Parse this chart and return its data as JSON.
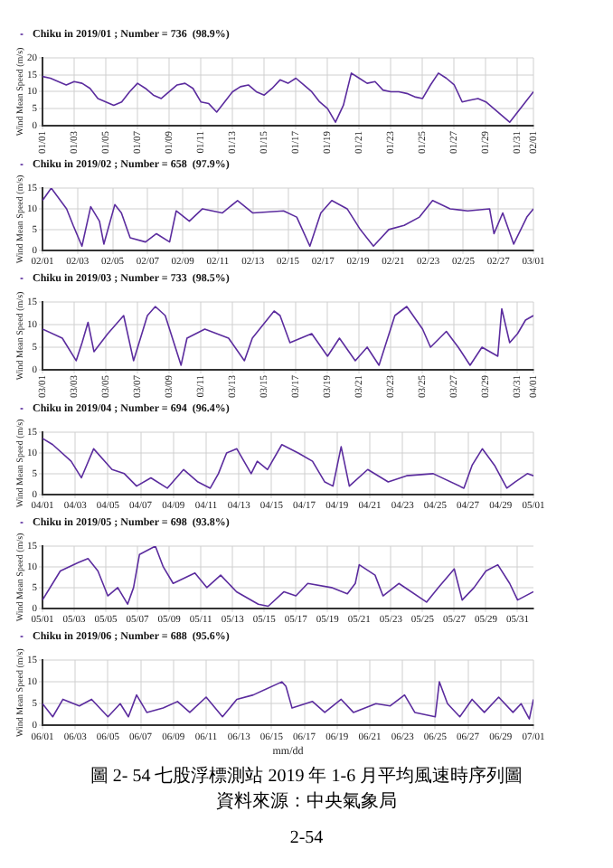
{
  "chart_data": [
    {
      "type": "line",
      "ylabel": "Wind Mean Speed (m/s)",
      "xlim": [
        "2019-01-01T00:00",
        "2019-02-01T00:00"
      ],
      "xticks": [
        {
          "value": "2019-01-01T00:00",
          "label": "01/01"
        },
        {
          "value": "2019-01-03T00:00",
          "label": "01/03"
        },
        {
          "value": "2019-01-05T00:00",
          "label": "01/05"
        },
        {
          "value": "2019-01-07T00:00",
          "label": "01/07"
        },
        {
          "value": "2019-01-09T00:00",
          "label": "01/09"
        },
        {
          "value": "2019-01-11T00:00",
          "label": "01/11"
        },
        {
          "value": "2019-01-13T00:00",
          "label": "01/13"
        },
        {
          "value": "2019-01-15T00:00",
          "label": "01/15"
        },
        {
          "value": "2019-01-17T00:00",
          "label": "01/17"
        },
        {
          "value": "2019-01-19T00:00",
          "label": "01/19"
        },
        {
          "value": "2019-01-21T00:00",
          "label": "01/21"
        },
        {
          "value": "2019-01-23T00:00",
          "label": "01/23"
        },
        {
          "value": "2019-01-25T00:00",
          "label": "01/25"
        },
        {
          "value": "2019-01-27T00:00",
          "label": "01/27"
        },
        {
          "value": "2019-01-29T00:00",
          "label": "01/29"
        },
        {
          "value": "2019-01-31T00:00",
          "label": "01/31"
        },
        {
          "value": "2019-02-01T00:00",
          "label": "02/01"
        }
      ],
      "ylim": [
        0,
        20
      ],
      "yticks": [
        0,
        5,
        10,
        15,
        20
      ],
      "grid": true,
      "legend": "top left",
      "x": [
        "2019-01-01T00:00",
        "2019-01-01T12:00",
        "2019-01-02T00:00",
        "2019-01-02T12:00",
        "2019-01-03T00:00",
        "2019-01-03T12:00",
        "2019-01-04T00:00",
        "2019-01-04T12:00",
        "2019-01-05T00:00",
        "2019-01-05T12:00",
        "2019-01-06T00:00",
        "2019-01-06T12:00",
        "2019-01-07T00:00",
        "2019-01-07T12:00",
        "2019-01-08T00:00",
        "2019-01-08T12:00",
        "2019-01-09T00:00",
        "2019-01-09T12:00",
        "2019-01-10T00:00",
        "2019-01-10T12:00",
        "2019-01-11T00:00",
        "2019-01-11T12:00",
        "2019-01-12T00:00",
        "2019-01-12T12:00",
        "2019-01-13T00:00",
        "2019-01-13T12:00",
        "2019-01-14T00:00",
        "2019-01-14T12:00",
        "2019-01-15T00:00",
        "2019-01-15T12:00",
        "2019-01-16T00:00",
        "2019-01-16T12:00",
        "2019-01-17T00:00",
        "2019-01-17T12:00",
        "2019-01-18T00:00",
        "2019-01-18T12:00",
        "2019-01-19T00:00",
        "2019-01-19T12:00",
        "2019-01-20T00:00",
        "2019-01-20T12:00",
        "2019-01-21T00:00",
        "2019-01-21T12:00",
        "2019-01-22T00:00",
        "2019-01-22T12:00",
        "2019-01-23T00:00",
        "2019-01-23T12:00",
        "2019-01-24T00:00",
        "2019-01-24T12:00",
        "2019-01-25T00:00",
        "2019-01-25T12:00",
        "2019-01-26T00:00",
        "2019-01-26T12:00",
        "2019-01-27T00:00",
        "2019-01-27T12:00",
        "2019-01-28T00:00",
        "2019-01-28T12:00",
        "2019-01-29T00:00",
        "2019-01-29T12:00",
        "2019-01-30T00:00",
        "2019-01-30T12:00",
        "2019-01-31T00:00",
        "2019-01-31T12:00",
        "2019-02-01T00:00"
      ],
      "series": [
        {
          "name": "Chiku in 2019/01 ; Number = 736  (98.9%)",
          "color": "#5b2c9e",
          "values": [
            14.5,
            14,
            13,
            12,
            13,
            12.5,
            11,
            8,
            7,
            6,
            7,
            10,
            12.5,
            11,
            9,
            8,
            10,
            12,
            12.5,
            11,
            7,
            6.5,
            4,
            7,
            10,
            11.5,
            12,
            10,
            9,
            11,
            13.5,
            12.5,
            14,
            12,
            10,
            7,
            5,
            1,
            6,
            15.5,
            14,
            12.5,
            13,
            10.5,
            10,
            10,
            9.5,
            8.5,
            8,
            12,
            15.5,
            14,
            12,
            7,
            7.5,
            8,
            7,
            5,
            3,
            1,
            4,
            7,
            10
          ]
        }
      ]
    },
    {
      "type": "line",
      "ylabel": "Wind Mean Speed (m/s)",
      "xlim": [
        "2019-02-01T00:00",
        "2019-03-01T00:00"
      ],
      "xticks": [
        {
          "value": "2019-02-01T00:00",
          "label": "02/01"
        },
        {
          "value": "2019-02-03T00:00",
          "label": "02/03"
        },
        {
          "value": "2019-02-05T00:00",
          "label": "02/05"
        },
        {
          "value": "2019-02-07T00:00",
          "label": "02/07"
        },
        {
          "value": "2019-02-09T00:00",
          "label": "02/09"
        },
        {
          "value": "2019-02-11T00:00",
          "label": "02/11"
        },
        {
          "value": "2019-02-13T00:00",
          "label": "02/13"
        },
        {
          "value": "2019-02-15T00:00",
          "label": "02/15"
        },
        {
          "value": "2019-02-17T00:00",
          "label": "02/17"
        },
        {
          "value": "2019-02-19T00:00",
          "label": "02/19"
        },
        {
          "value": "2019-02-21T00:00",
          "label": "02/21"
        },
        {
          "value": "2019-02-23T00:00",
          "label": "02/23"
        },
        {
          "value": "2019-02-25T00:00",
          "label": "02/25"
        },
        {
          "value": "2019-02-27T00:00",
          "label": "02/27"
        },
        {
          "value": "2019-03-01T00:00",
          "label": "03/01"
        }
      ],
      "ylim": [
        0,
        15
      ],
      "yticks": [
        0,
        5,
        10,
        15
      ],
      "grid": true,
      "legend": "top left",
      "x": [
        "2019-02-01T00:00",
        "2019-02-01T12:00",
        "2019-02-02T09:00",
        "2019-02-02T18:00",
        "2019-02-03T06:00",
        "2019-02-03T18:00",
        "2019-02-04T06:00",
        "2019-02-04T12:00",
        "2019-02-05T03:00",
        "2019-02-05T12:00",
        "2019-02-06T00:00",
        "2019-02-06T21:00",
        "2019-02-07T12:00",
        "2019-02-08T06:00",
        "2019-02-08T15:00",
        "2019-02-09T09:00",
        "2019-02-10T03:00",
        "2019-02-11T06:00",
        "2019-02-12T03:00",
        "2019-02-13T00:00",
        "2019-02-14T18:00",
        "2019-02-15T12:00",
        "2019-02-16T06:00",
        "2019-02-16T21:00",
        "2019-02-17T12:00",
        "2019-02-18T09:00",
        "2019-02-19T03:00",
        "2019-02-19T21:00",
        "2019-02-20T18:00",
        "2019-02-21T15:00",
        "2019-02-22T12:00",
        "2019-02-23T06:00",
        "2019-02-24T06:00",
        "2019-02-25T06:00",
        "2019-02-26T12:00",
        "2019-02-26T18:00",
        "2019-02-27T06:00",
        "2019-02-27T21:00",
        "2019-02-28T15:00",
        "2019-03-01T00:00"
      ],
      "series": [
        {
          "name": "Chiku in 2019/02 ; Number = 658  (97.9%)",
          "color": "#5b2c9e",
          "values": [
            12,
            15,
            10,
            6,
            1,
            10.5,
            7,
            1.5,
            11,
            9,
            3,
            2,
            4,
            2,
            9.5,
            7,
            10,
            9,
            12,
            9,
            9.5,
            8,
            1,
            9,
            12,
            10,
            5,
            1,
            5,
            6,
            8,
            12,
            10,
            9.5,
            10,
            4,
            9,
            1.5,
            8,
            10
          ]
        }
      ]
    },
    {
      "type": "line",
      "ylabel": "Wind Mean Speed (m/s)",
      "xlim": [
        "2019-03-01T00:00",
        "2019-04-01T00:00"
      ],
      "xticks": [
        {
          "value": "2019-03-01T00:00",
          "label": "03/01"
        },
        {
          "value": "2019-03-03T00:00",
          "label": "03/03"
        },
        {
          "value": "2019-03-05T00:00",
          "label": "03/05"
        },
        {
          "value": "2019-03-07T00:00",
          "label": "03/07"
        },
        {
          "value": "2019-03-09T00:00",
          "label": "03/09"
        },
        {
          "value": "2019-03-11T00:00",
          "label": "03/11"
        },
        {
          "value": "2019-03-13T00:00",
          "label": "03/13"
        },
        {
          "value": "2019-03-15T00:00",
          "label": "03/15"
        },
        {
          "value": "2019-03-17T00:00",
          "label": "03/17"
        },
        {
          "value": "2019-03-19T00:00",
          "label": "03/19"
        },
        {
          "value": "2019-03-21T00:00",
          "label": "03/21"
        },
        {
          "value": "2019-03-23T00:00",
          "label": "03/23"
        },
        {
          "value": "2019-03-25T00:00",
          "label": "03/25"
        },
        {
          "value": "2019-03-27T00:00",
          "label": "03/27"
        },
        {
          "value": "2019-03-29T00:00",
          "label": "03/29"
        },
        {
          "value": "2019-03-31T00:00",
          "label": "03/31"
        },
        {
          "value": "2019-04-01T00:00",
          "label": "04/01"
        }
      ],
      "ylim": [
        0,
        15
      ],
      "yticks": [
        0,
        5,
        10,
        15
      ],
      "grid": true,
      "legend": "top left",
      "x": [
        "2019-03-01T00:00",
        "2019-03-02T06:00",
        "2019-03-03T03:00",
        "2019-03-03T12:00",
        "2019-03-03T21:00",
        "2019-03-04T06:00",
        "2019-03-05T03:00",
        "2019-03-06T03:00",
        "2019-03-06T18:00",
        "2019-03-07T15:00",
        "2019-03-08T03:00",
        "2019-03-08T18:00",
        "2019-03-09T18:00",
        "2019-03-10T03:00",
        "2019-03-11T06:00",
        "2019-03-12T18:00",
        "2019-03-13T18:00",
        "2019-03-14T06:00",
        "2019-03-15T15:00",
        "2019-03-16T00:00",
        "2019-03-16T15:00",
        "2019-03-18T00:00",
        "2019-03-19T00:00",
        "2019-03-19T18:00",
        "2019-03-20T18:00",
        "2019-03-21T12:00",
        "2019-03-22T06:00",
        "2019-03-23T06:00",
        "2019-03-24T00:00",
        "2019-03-25T00:00",
        "2019-03-25T12:00",
        "2019-03-26T12:00",
        "2019-03-27T06:00",
        "2019-03-28T00:00",
        "2019-03-28T18:00",
        "2019-03-29T18:00",
        "2019-03-30T00:00",
        "2019-03-30T12:00",
        "2019-03-31T00:00",
        "2019-03-31T12:00",
        "2019-04-01T00:00"
      ],
      "series": [
        {
          "name": "Chiku in 2019/03 ; Number = 733  (98.5%)",
          "color": "#5b2c9e",
          "values": [
            9,
            7,
            2,
            6,
            10.5,
            4,
            8,
            12,
            2,
            12,
            14,
            12,
            1,
            7,
            9,
            7,
            2,
            7,
            13,
            12,
            6,
            8,
            3,
            7,
            2,
            5,
            1,
            12,
            14,
            9,
            5,
            8.5,
            5,
            1,
            5,
            3,
            13.5,
            6,
            8,
            11,
            12
          ]
        }
      ]
    },
    {
      "type": "line",
      "ylabel": "Wind Mean Speed (m/s)",
      "xlim": [
        "2019-04-01T00:00",
        "2019-05-01T00:00"
      ],
      "xticks": [
        {
          "value": "2019-04-01T00:00",
          "label": "04/01"
        },
        {
          "value": "2019-04-03T00:00",
          "label": "04/03"
        },
        {
          "value": "2019-04-05T00:00",
          "label": "04/05"
        },
        {
          "value": "2019-04-07T00:00",
          "label": "04/07"
        },
        {
          "value": "2019-04-09T00:00",
          "label": "04/09"
        },
        {
          "value": "2019-04-11T00:00",
          "label": "04/11"
        },
        {
          "value": "2019-04-13T00:00",
          "label": "04/13"
        },
        {
          "value": "2019-04-15T00:00",
          "label": "04/15"
        },
        {
          "value": "2019-04-17T00:00",
          "label": "04/17"
        },
        {
          "value": "2019-04-19T00:00",
          "label": "04/19"
        },
        {
          "value": "2019-04-21T00:00",
          "label": "04/21"
        },
        {
          "value": "2019-04-23T00:00",
          "label": "04/23"
        },
        {
          "value": "2019-04-25T00:00",
          "label": "04/25"
        },
        {
          "value": "2019-04-27T00:00",
          "label": "04/27"
        },
        {
          "value": "2019-04-29T00:00",
          "label": "04/29"
        },
        {
          "value": "2019-05-01T00:00",
          "label": "05/01"
        }
      ],
      "ylim": [
        0,
        15
      ],
      "yticks": [
        0,
        5,
        10,
        15
      ],
      "grid": true,
      "legend": "top left",
      "x": [
        "2019-04-01T00:00",
        "2019-04-01T15:00",
        "2019-04-02T18:00",
        "2019-04-03T09:00",
        "2019-04-04T03:00",
        "2019-04-05T06:00",
        "2019-04-06T00:00",
        "2019-04-06T18:00",
        "2019-04-07T15:00",
        "2019-04-08T15:00",
        "2019-04-09T15:00",
        "2019-04-10T12:00",
        "2019-04-11T06:00",
        "2019-04-11T18:00",
        "2019-04-12T06:00",
        "2019-04-12T21:00",
        "2019-04-13T18:00",
        "2019-04-14T03:00",
        "2019-04-14T18:00",
        "2019-04-15T15:00",
        "2019-04-16T15:00",
        "2019-04-17T12:00",
        "2019-04-18T06:00",
        "2019-04-18T18:00",
        "2019-04-19T06:00",
        "2019-04-19T18:00",
        "2019-04-20T21:00",
        "2019-04-22T03:00",
        "2019-04-23T06:00",
        "2019-04-24T21:00",
        "2019-04-26T18:00",
        "2019-04-27T06:00",
        "2019-04-27T21:00",
        "2019-04-28T15:00",
        "2019-04-29T09:00",
        "2019-04-29T21:00",
        "2019-04-30T15:00",
        "2019-05-01T00:00"
      ],
      "series": [
        {
          "name": "Chiku in 2019/04 ; Number = 694  (96.4%)",
          "color": "#5b2c9e",
          "values": [
            13.5,
            12,
            8,
            4,
            11,
            6,
            5,
            2,
            4,
            1.5,
            6,
            3,
            1.5,
            5,
            10,
            11,
            5,
            8,
            6,
            12,
            10,
            8,
            3,
            2,
            11.5,
            2,
            6,
            3,
            4.5,
            5,
            1.5,
            7,
            11,
            7,
            1.5,
            3,
            5,
            4.5
          ]
        }
      ]
    },
    {
      "type": "line",
      "ylabel": "Wind Mean Speed (m/s)",
      "xlim": [
        "2019-05-01T00:00",
        "2019-06-01T00:00"
      ],
      "xticks": [
        {
          "value": "2019-05-01T00:00",
          "label": "05/01"
        },
        {
          "value": "2019-05-03T00:00",
          "label": "05/03"
        },
        {
          "value": "2019-05-05T00:00",
          "label": "05/05"
        },
        {
          "value": "2019-05-07T00:00",
          "label": "05/07"
        },
        {
          "value": "2019-05-09T00:00",
          "label": "05/09"
        },
        {
          "value": "2019-05-11T00:00",
          "label": "05/11"
        },
        {
          "value": "2019-05-13T00:00",
          "label": "05/13"
        },
        {
          "value": "2019-05-15T00:00",
          "label": "05/15"
        },
        {
          "value": "2019-05-17T00:00",
          "label": "05/17"
        },
        {
          "value": "2019-05-19T00:00",
          "label": "05/19"
        },
        {
          "value": "2019-05-21T00:00",
          "label": "05/21"
        },
        {
          "value": "2019-05-23T00:00",
          "label": "05/23"
        },
        {
          "value": "2019-05-25T00:00",
          "label": "05/25"
        },
        {
          "value": "2019-05-27T00:00",
          "label": "05/27"
        },
        {
          "value": "2019-05-29T00:00",
          "label": "05/29"
        },
        {
          "value": "2019-05-31T00:00",
          "label": "05/31"
        }
      ],
      "ylim": [
        0,
        15
      ],
      "yticks": [
        0,
        5,
        10,
        15
      ],
      "grid": true,
      "legend": "top left",
      "x": [
        "2019-05-01T00:00",
        "2019-05-02T03:00",
        "2019-05-03T06:00",
        "2019-05-03T21:00",
        "2019-05-04T12:00",
        "2019-05-05T03:00",
        "2019-05-05T18:00",
        "2019-05-06T09:00",
        "2019-05-06T18:00",
        "2019-05-07T03:00",
        "2019-05-08T03:00",
        "2019-05-08T15:00",
        "2019-05-09T06:00",
        "2019-05-10T15:00",
        "2019-05-11T09:00",
        "2019-05-12T06:00",
        "2019-05-13T06:00",
        "2019-05-14T15:00",
        "2019-05-15T06:00",
        "2019-05-16T06:00",
        "2019-05-17T00:00",
        "2019-05-17T18:00",
        "2019-05-19T06:00",
        "2019-05-20T06:00",
        "2019-05-20T18:00",
        "2019-05-21T00:00",
        "2019-05-22T00:00",
        "2019-05-22T12:00",
        "2019-05-23T12:00",
        "2019-05-25T06:00",
        "2019-05-26T00:00",
        "2019-05-27T00:00",
        "2019-05-27T12:00",
        "2019-05-28T06:00",
        "2019-05-29T00:00",
        "2019-05-29T18:00",
        "2019-05-30T12:00",
        "2019-05-31T00:00",
        "2019-06-01T00:00"
      ],
      "series": [
        {
          "name": "Chiku in 2019/05 ; Number = 698  (93.8%)",
          "color": "#5b2c9e",
          "values": [
            2,
            9,
            11,
            12,
            9,
            3,
            5,
            1,
            5,
            13,
            15,
            10,
            6,
            8.5,
            5,
            8,
            4,
            1,
            0.5,
            4,
            3,
            6,
            5,
            3.5,
            6,
            10.5,
            8,
            3,
            6,
            1.5,
            5,
            9.5,
            2,
            5,
            9,
            10.5,
            6,
            2,
            4
          ]
        }
      ]
    },
    {
      "type": "line",
      "ylabel": "Wind Mean Speed (m/s)",
      "xlabel": "mm/dd",
      "xlim": [
        "2019-06-01T00:00",
        "2019-07-01T00:00"
      ],
      "xticks": [
        {
          "value": "2019-06-01T00:00",
          "label": "06/01"
        },
        {
          "value": "2019-06-03T00:00",
          "label": "06/03"
        },
        {
          "value": "2019-06-05T00:00",
          "label": "06/05"
        },
        {
          "value": "2019-06-07T00:00",
          "label": "06/07"
        },
        {
          "value": "2019-06-09T00:00",
          "label": "06/09"
        },
        {
          "value": "2019-06-11T00:00",
          "label": "06/11"
        },
        {
          "value": "2019-06-13T00:00",
          "label": "06/13"
        },
        {
          "value": "2019-06-15T00:00",
          "label": "06/15"
        },
        {
          "value": "2019-06-17T00:00",
          "label": "06/17"
        },
        {
          "value": "2019-06-19T00:00",
          "label": "06/19"
        },
        {
          "value": "2019-06-21T00:00",
          "label": "06/21"
        },
        {
          "value": "2019-06-23T00:00",
          "label": "06/23"
        },
        {
          "value": "2019-06-25T00:00",
          "label": "06/25"
        },
        {
          "value": "2019-06-27T00:00",
          "label": "06/27"
        },
        {
          "value": "2019-06-29T00:00",
          "label": "06/29"
        },
        {
          "value": "2019-07-01T00:00",
          "label": "07/01"
        }
      ],
      "ylim": [
        0,
        15
      ],
      "yticks": [
        0,
        5,
        10,
        15
      ],
      "grid": true,
      "legend": "top left",
      "annotations": [
        "圖 2- 54  七股浮標測站 2019 年 1-6 月平均風速時序列圖",
        "資料來源：中央氣象局",
        "2-54"
      ],
      "x": [
        "2019-06-01T00:00",
        "2019-06-01T15:00",
        "2019-06-02T06:00",
        "2019-06-03T06:00",
        "2019-06-04T00:00",
        "2019-06-05T00:00",
        "2019-06-05T18:00",
        "2019-06-06T06:00",
        "2019-06-06T18:00",
        "2019-06-07T09:00",
        "2019-06-08T09:00",
        "2019-06-09T06:00",
        "2019-06-10T00:00",
        "2019-06-11T00:00",
        "2019-06-12T00:00",
        "2019-06-12T21:00",
        "2019-06-13T21:00",
        "2019-06-15T15:00",
        "2019-06-15T21:00",
        "2019-06-16T06:00",
        "2019-06-17T12:00",
        "2019-06-18T06:00",
        "2019-06-19T06:00",
        "2019-06-20T00:00",
        "2019-06-21T09:00",
        "2019-06-22T06:00",
        "2019-06-23T03:00",
        "2019-06-23T18:00",
        "2019-06-25T00:00",
        "2019-06-25T06:00",
        "2019-06-25T18:00",
        "2019-06-26T12:00",
        "2019-06-27T06:00",
        "2019-06-28T00:00",
        "2019-06-28T21:00",
        "2019-06-29T18:00",
        "2019-06-30T06:00",
        "2019-06-30T18:00",
        "2019-07-01T00:00"
      ],
      "series": [
        {
          "name": "Chiku in 2019/06 ; Number = 688  (95.6%)",
          "color": "#5b2c9e",
          "values": [
            5,
            2,
            6,
            4.5,
            6,
            2,
            5,
            2,
            7,
            3,
            4,
            5.5,
            3,
            6.5,
            2,
            6,
            7,
            10,
            9,
            4,
            5.5,
            3,
            6,
            3,
            5,
            4.5,
            7,
            3,
            2,
            10,
            5,
            2,
            6,
            3,
            6.5,
            3,
            5,
            1.5,
            6
          ]
        }
      ]
    }
  ]
}
